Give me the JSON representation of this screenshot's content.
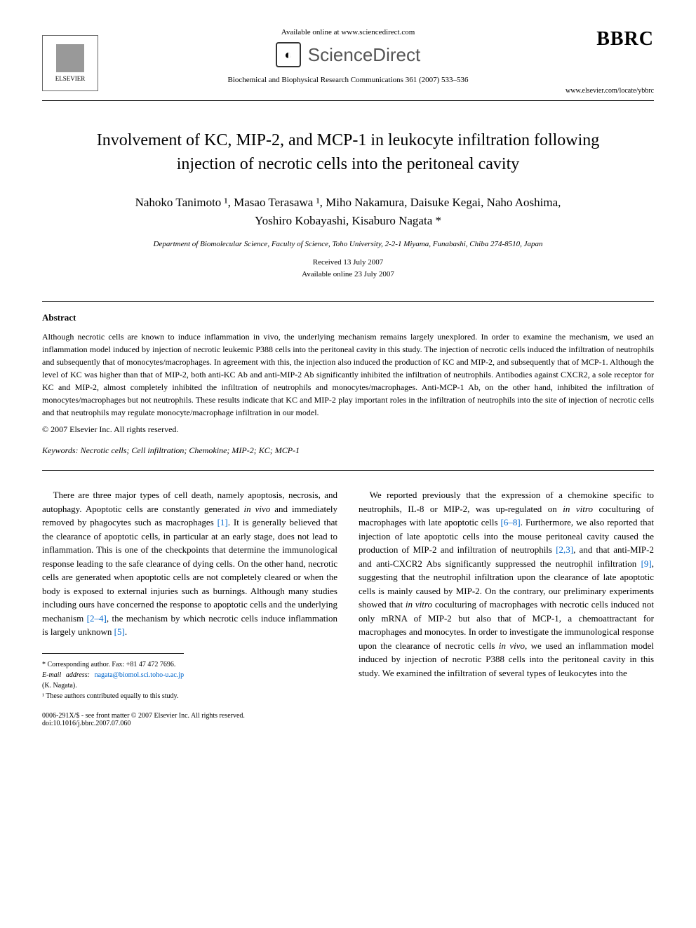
{
  "header": {
    "available_online": "Available online at www.sciencedirect.com",
    "sciencedirect": "ScienceDirect",
    "elsevier_label": "ELSEVIER",
    "bbrc": "BBRC",
    "journal_ref": "Biochemical and Biophysical Research Communications 361 (2007) 533–536",
    "journal_url": "www.elsevier.com/locate/ybbrc"
  },
  "title": "Involvement of KC, MIP-2, and MCP-1 in leukocyte infiltration following injection of necrotic cells into the peritoneal cavity",
  "authors_line1": "Nahoko Tanimoto ¹, Masao Terasawa ¹, Miho Nakamura, Daisuke Kegai, Naho Aoshima,",
  "authors_line2": "Yoshiro Kobayashi, Kisaburo Nagata *",
  "affiliation": "Department of Biomolecular Science, Faculty of Science, Toho University, 2-2-1 Miyama, Funabashi, Chiba 274-8510, Japan",
  "dates": {
    "received": "Received 13 July 2007",
    "online": "Available online 23 July 2007"
  },
  "abstract": {
    "heading": "Abstract",
    "text": "Although necrotic cells are known to induce inflammation in vivo, the underlying mechanism remains largely unexplored. In order to examine the mechanism, we used an inflammation model induced by injection of necrotic leukemic P388 cells into the peritoneal cavity in this study. The injection of necrotic cells induced the infiltration of neutrophils and subsequently that of monocytes/macrophages. In agreement with this, the injection also induced the production of KC and MIP-2, and subsequently that of MCP-1. Although the level of KC was higher than that of MIP-2, both anti-KC Ab and anti-MIP-2 Ab significantly inhibited the infiltration of neutrophils. Antibodies against CXCR2, a sole receptor for KC and MIP-2, almost completely inhibited the infiltration of neutrophils and monocytes/macrophages. Anti-MCP-1 Ab, on the other hand, inhibited the infiltration of monocytes/macrophages but not neutrophils. These results indicate that KC and MIP-2 play important roles in the infiltration of neutrophils into the site of injection of necrotic cells and that neutrophils may regulate monocyte/macrophage infiltration in our model.",
    "copyright": "© 2007 Elsevier Inc. All rights reserved."
  },
  "keywords": {
    "label": "Keywords:",
    "text": "Necrotic cells; Cell infiltration; Chemokine; MIP-2; KC; MCP-1"
  },
  "body": {
    "col1_p1": "There are three major types of cell death, namely apoptosis, necrosis, and autophagy. Apoptotic cells are constantly generated in vivo and immediately removed by phagocytes such as macrophages [1]. It is generally believed that the clearance of apoptotic cells, in particular at an early stage, does not lead to inflammation. This is one of the checkpoints that determine the immunological response leading to the safe clearance of dying cells. On the other hand, necrotic cells are generated when apoptotic cells are not completely cleared or when the body is exposed to external injuries such as burnings. Although many studies including ours have concerned the response to apoptotic cells and the underlying mechanism [2–4], the mechanism by which necrotic cells induce inflammation is largely unknown [5].",
    "col2_p1": "We reported previously that the expression of a chemokine specific to neutrophils, IL-8 or MIP-2, was up-regulated on in vitro coculturing of macrophages with late apoptotic cells [6–8]. Furthermore, we also reported that injection of late apoptotic cells into the mouse peritoneal cavity caused the production of MIP-2 and infiltration of neutrophils [2,3], and that anti-MIP-2 and anti-CXCR2 Abs significantly suppressed the neutrophil infiltration [9], suggesting that the neutrophil infiltration upon the clearance of late apoptotic cells is mainly caused by MIP-2. On the contrary, our preliminary experiments showed that in vitro coculturing of macrophages with necrotic cells induced not only mRNA of MIP-2 but also that of MCP-1, a chemoattractant for macrophages and monocytes. In order to investigate the immunological response upon the clearance of necrotic cells in vivo, we used an inflammation model induced by injection of necrotic P388 cells into the peritoneal cavity in this study. We examined the infiltration of several types of leukocytes into the"
  },
  "footnotes": {
    "corresponding": "* Corresponding author. Fax: +81 47 472 7696.",
    "email_label": "E-mail address:",
    "email": "nagata@biomol.sci.toho-u.ac.jp",
    "email_person": "(K. Nagata).",
    "equal": "¹ These authors contributed equally to this study."
  },
  "footer": {
    "issn": "0006-291X/$ - see front matter © 2007 Elsevier Inc. All rights reserved.",
    "doi": "doi:10.1016/j.bbrc.2007.07.060"
  },
  "refs": {
    "r1": "[1]",
    "r24": "[2–4]",
    "r5": "[5]",
    "r68": "[6–8]",
    "r23": "[2,3]",
    "r9": "[9]"
  }
}
